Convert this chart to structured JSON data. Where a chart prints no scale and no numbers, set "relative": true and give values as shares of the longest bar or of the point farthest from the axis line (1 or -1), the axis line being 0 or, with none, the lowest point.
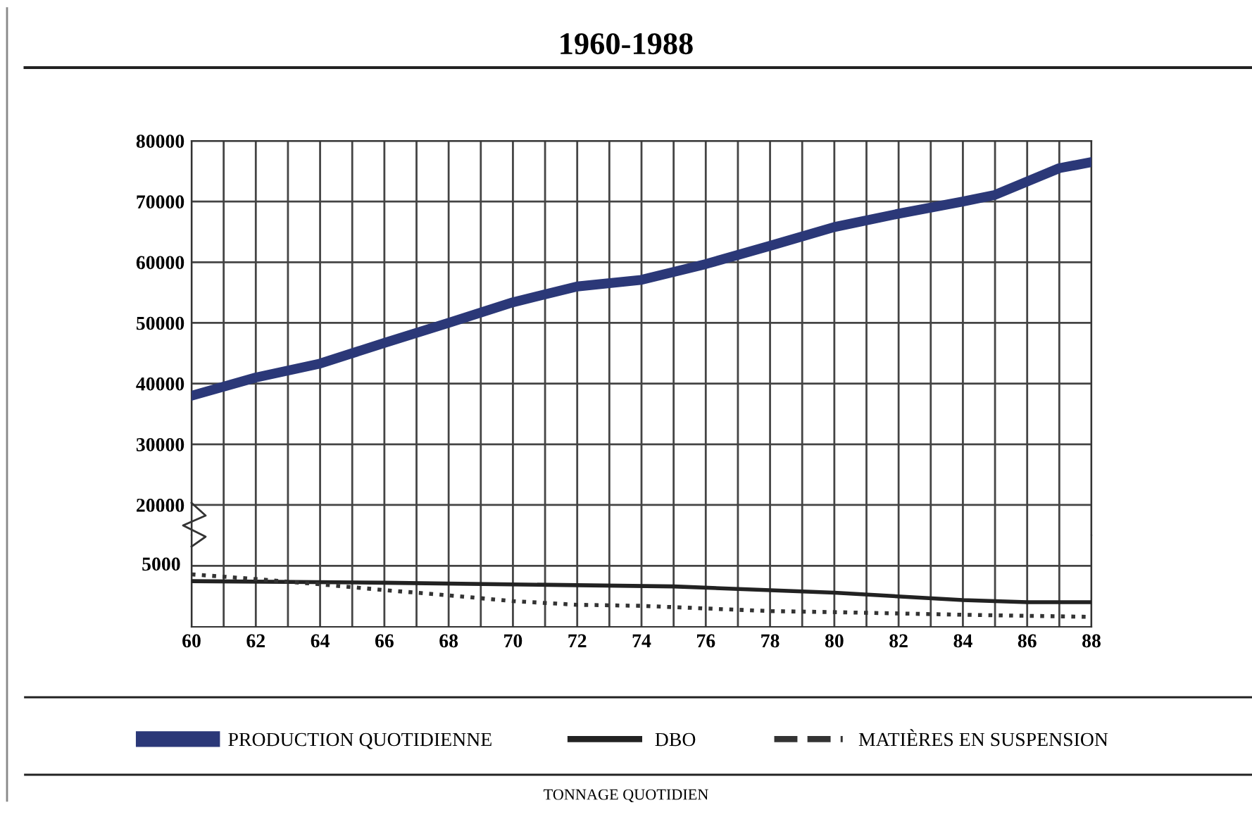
{
  "chart_data": [
    {
      "type": "line",
      "title": "1960-1988",
      "xlim": [
        60,
        88
      ],
      "ylim": [
        15000,
        80000
      ],
      "xticks": [
        60,
        {
          "value": 61,
          "label": null
        },
        62,
        {
          "value": 63,
          "label": null
        },
        64,
        {
          "value": 65,
          "label": null
        },
        66,
        {
          "value": 67,
          "label": null
        },
        68,
        {
          "value": 69,
          "label": null
        },
        70,
        {
          "value": 71,
          "label": null
        },
        72,
        {
          "value": 73,
          "label": null
        },
        74,
        {
          "value": 75,
          "label": null
        },
        76,
        {
          "value": 77,
          "label": null
        },
        78,
        {
          "value": 79,
          "label": null
        },
        80,
        {
          "value": 81,
          "label": null
        },
        82,
        {
          "value": 83,
          "label": null
        },
        84,
        {
          "value": 85,
          "label": null
        },
        86,
        {
          "value": 87,
          "label": null
        },
        88
      ],
      "yticks": [
        20000,
        30000,
        40000,
        50000,
        60000,
        70000,
        80000
      ],
      "tick_labels": "y",
      "grid": true,
      "legend": "bottom",
      "series": [
        {
          "name": "PRODUCTION QUOTIDIENNE",
          "color": "#2b3878",
          "line_style": "solid",
          "x": [
            60,
            62,
            64,
            66,
            68,
            70,
            72,
            74,
            76,
            78,
            80,
            82,
            84,
            85,
            87,
            88
          ],
          "values": [
            38000,
            41000,
            43300,
            46700,
            50000,
            53400,
            56000,
            57100,
            59700,
            62700,
            65800,
            68000,
            70000,
            71100,
            75500,
            76500
          ]
        }
      ]
    },
    {
      "type": "line",
      "xlabel": "TONNAGE QUOTIDIEN",
      "xlim": [
        60,
        88
      ],
      "relative": true,
      "annotations": [
        "5000"
      ],
      "xticks": [
        60,
        {
          "value": 61,
          "label": null
        },
        62,
        {
          "value": 63,
          "label": null
        },
        64,
        {
          "value": 65,
          "label": null
        },
        66,
        {
          "value": 67,
          "label": null
        },
        68,
        {
          "value": 69,
          "label": null
        },
        70,
        {
          "value": 71,
          "label": null
        },
        72,
        {
          "value": 73,
          "label": null
        },
        74,
        {
          "value": 75,
          "label": null
        },
        76,
        {
          "value": 77,
          "label": null
        },
        78,
        {
          "value": 79,
          "label": null
        },
        80,
        {
          "value": 81,
          "label": null
        },
        82,
        {
          "value": 83,
          "label": null
        },
        84,
        {
          "value": 85,
          "label": null
        },
        86,
        {
          "value": 87,
          "label": null
        },
        88
      ],
      "grid": true,
      "legend": "bottom",
      "series": [
        {
          "name": "DBO",
          "color": "#222222",
          "line_style": "solid",
          "x": [
            60,
            66,
            75,
            80,
            84,
            86,
            88
          ],
          "values": [
            0.87,
            0.84,
            0.77,
            0.65,
            0.51,
            0.47,
            0.47
          ]
        },
        {
          "name": "MATIÈRES EN SUSPENSION",
          "color": "#333333",
          "line_style": "dotted",
          "x": [
            60,
            62,
            64,
            66,
            68,
            70,
            72,
            74,
            76,
            78,
            80,
            84,
            88
          ],
          "values": [
            1,
            0.91,
            0.81,
            0.7,
            0.6,
            0.49,
            0.42,
            0.4,
            0.35,
            0.3,
            0.28,
            0.23,
            0.19
          ]
        }
      ]
    }
  ]
}
